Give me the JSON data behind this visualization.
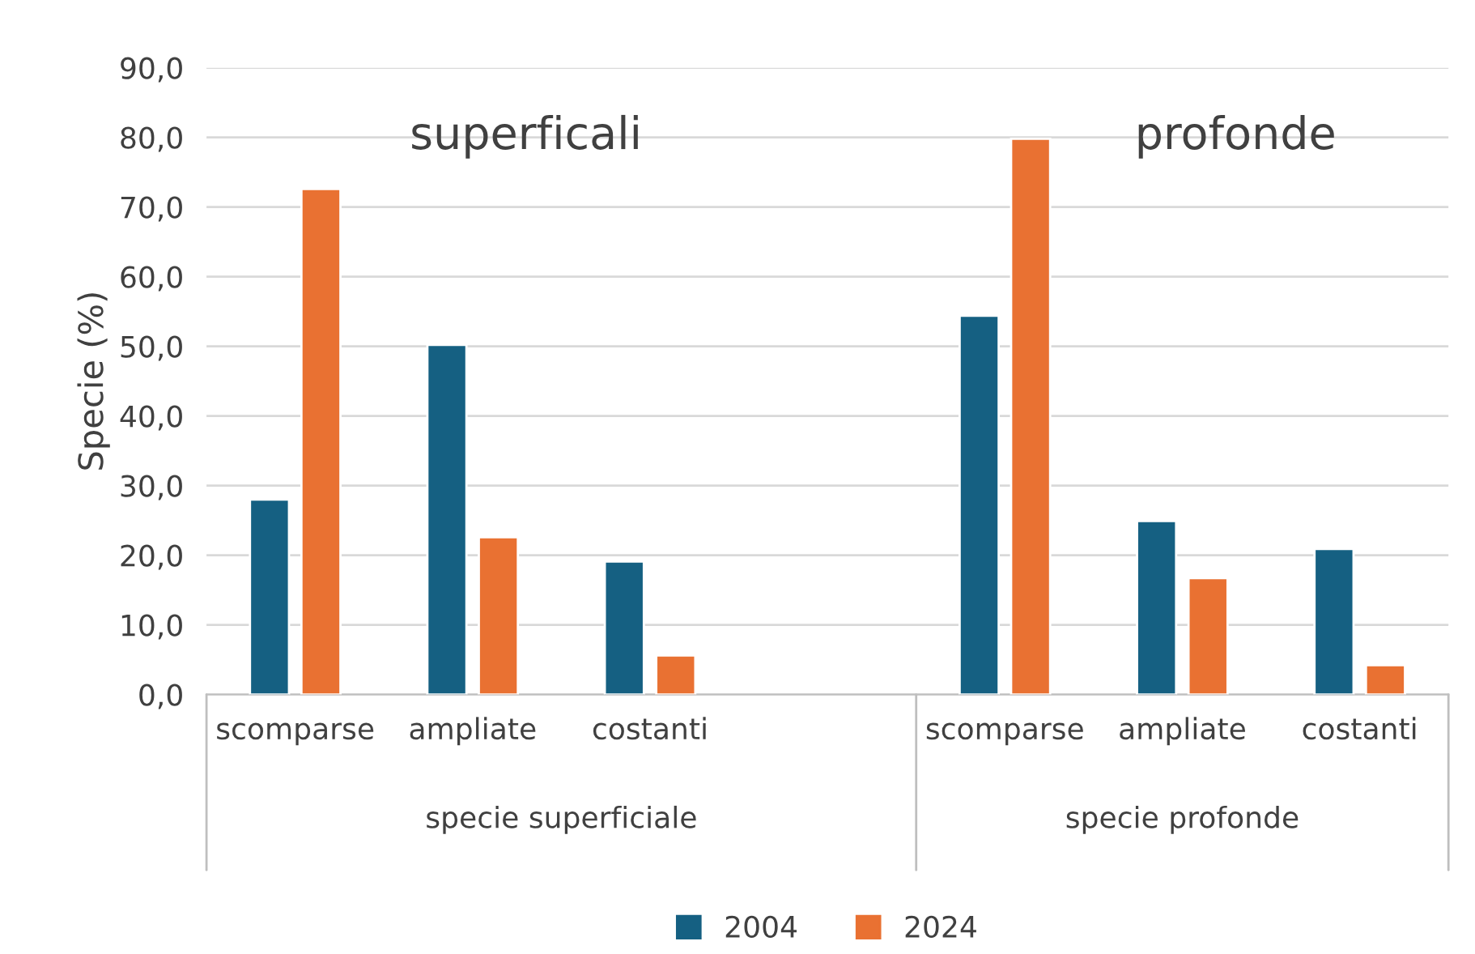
{
  "chart_data": {
    "type": "bar",
    "ylabel": "Specie (%)",
    "categories": [
      "scomparse",
      "ampliate",
      "costanti",
      null,
      "scomparse",
      "ampliate",
      "costanti"
    ],
    "series": [
      {
        "name": "2004",
        "color": "#156082",
        "values": [
          28.0,
          50.2,
          19.1,
          null,
          54.4,
          24.9,
          20.9
        ]
      },
      {
        "name": "2024",
        "color": "#e97132",
        "values": [
          72.6,
          22.6,
          5.6,
          null,
          79.8,
          16.7,
          4.2
        ]
      }
    ],
    "ylim": [
      0,
      90
    ],
    "yticks": [
      {
        "value": 0,
        "label": "0,0"
      },
      {
        "value": 10,
        "label": "10,0"
      },
      {
        "value": 20,
        "label": "20,0"
      },
      {
        "value": 30,
        "label": "30,0"
      },
      {
        "value": 40,
        "label": "40,0"
      },
      {
        "value": 50,
        "label": "50,0"
      },
      {
        "value": 60,
        "label": "60,0"
      },
      {
        "value": 70,
        "label": "70,0"
      },
      {
        "value": 80,
        "label": "80,0"
      },
      {
        "value": 90,
        "label": "90,0"
      }
    ],
    "grid": "y",
    "legend": "bottom",
    "annotations": [
      "specie superficiale",
      "specie profonde",
      "superficali",
      "profonde"
    ]
  }
}
